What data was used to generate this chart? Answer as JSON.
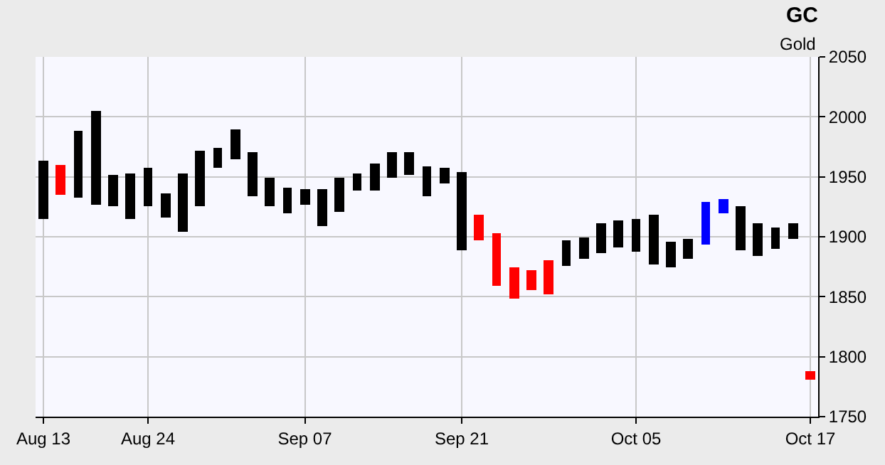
{
  "chart_data": {
    "type": "bar",
    "title": "GC",
    "subtitle": "Gold",
    "categories": [
      "Aug 13",
      null,
      null,
      null,
      null,
      null,
      "Aug 24",
      null,
      null,
      null,
      null,
      null,
      null,
      null,
      null,
      "Sep 07",
      null,
      null,
      null,
      null,
      null,
      null,
      null,
      null,
      "Sep 21",
      null,
      null,
      null,
      null,
      null,
      null,
      null,
      null,
      null,
      "Oct 05",
      null,
      null,
      null,
      null,
      null,
      null,
      null,
      null,
      null,
      "Oct 17"
    ],
    "base": [
      1915,
      1935,
      1933,
      1927,
      1926,
      1915,
      1925,
      1916,
      1904,
      1925,
      1957,
      1965,
      1934,
      1926,
      1919,
      1927,
      1909,
      1921,
      1939,
      1939,
      1949,
      1952,
      1934,
      1945,
      1889,
      1897,
      1859,
      1849,
      1855,
      1852,
      1876,
      1882,
      1886,
      1891,
      1888,
      1877,
      1874,
      1882,
      1894,
      1919,
      1889,
      1884,
      1890,
      1898,
      1781
    ],
    "values": [
      49,
      25,
      55,
      78,
      26,
      38,
      33,
      20,
      49,
      47,
      17,
      25,
      36,
      23,
      22,
      13,
      31,
      28,
      14,
      22,
      22,
      19,
      25,
      13,
      65,
      21,
      44,
      26,
      17,
      28,
      21,
      18,
      25,
      23,
      27,
      41,
      22,
      16,
      35,
      13,
      36,
      27,
      18,
      13,
      7
    ],
    "colors": [
      "#000000",
      "#ff0000",
      "#000000",
      "#000000",
      "#000000",
      "#000000",
      "#000000",
      "#000000",
      "#000000",
      "#000000",
      "#000000",
      "#000000",
      "#000000",
      "#000000",
      "#000000",
      "#000000",
      "#000000",
      "#000000",
      "#000000",
      "#000000",
      "#000000",
      "#000000",
      "#000000",
      "#000000",
      "#000000",
      "#ff0000",
      "#ff0000",
      "#ff0000",
      "#ff0000",
      "#ff0000",
      "#000000",
      "#000000",
      "#000000",
      "#000000",
      "#000000",
      "#000000",
      "#000000",
      "#000000",
      "#0000ff",
      "#0000ff",
      "#000000",
      "#000000",
      "#000000",
      "#000000",
      "#ff0000"
    ],
    "ylim": [
      1750,
      2050
    ],
    "yticks": [
      1750,
      1800,
      1850,
      1900,
      1950,
      2000,
      2050
    ],
    "grid": true
  }
}
